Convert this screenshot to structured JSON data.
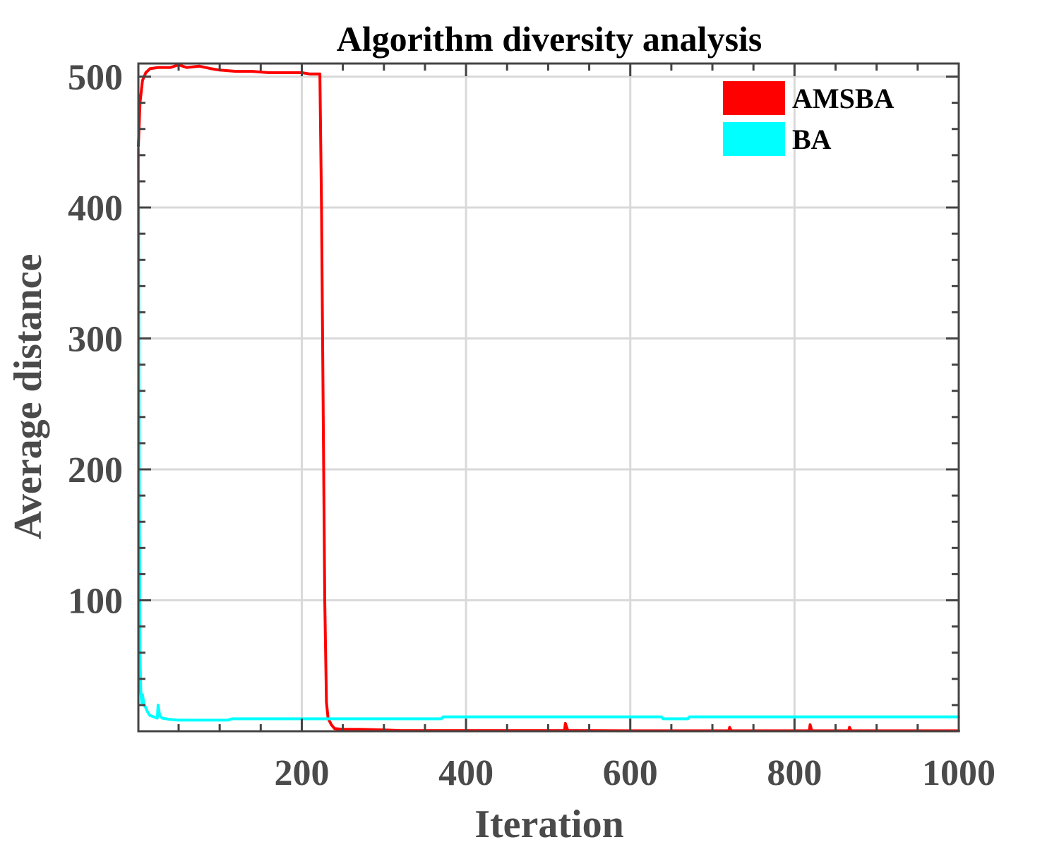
{
  "chart_data": {
    "type": "line",
    "title": "Algorithm diversity analysis",
    "xlabel": "Iteration",
    "ylabel": "Average distance",
    "xlim": [
      1,
      1000
    ],
    "ylim": [
      0,
      510
    ],
    "xticks": [
      200,
      400,
      600,
      800,
      1000
    ],
    "yticks": [
      100,
      200,
      300,
      400,
      500
    ],
    "grid": true,
    "legend_position": "top-right",
    "series": [
      {
        "name": "AMSBA",
        "color": "#ff0000",
        "x": [
          1,
          3,
          6,
          10,
          15,
          25,
          40,
          50,
          60,
          75,
          90,
          100,
          120,
          140,
          160,
          180,
          200,
          210,
          222,
          224,
          226,
          228,
          230,
          232,
          236,
          240,
          250,
          270,
          300,
          320,
          350,
          380,
          400,
          450,
          500,
          520,
          521,
          524,
          550,
          600,
          650,
          700,
          720,
          721,
          723,
          750,
          800,
          818,
          819,
          821,
          850,
          866,
          867,
          869,
          900,
          950,
          1000
        ],
        "values": [
          447,
          480,
          497,
          503,
          506,
          507,
          507,
          509,
          507,
          508,
          506,
          505,
          504,
          504,
          503,
          503,
          503,
          502,
          502,
          400,
          250,
          100,
          22,
          10,
          5,
          2,
          1.5,
          1.5,
          1,
          0.5,
          0.5,
          0.5,
          0.5,
          0.5,
          0.5,
          0.5,
          6,
          0.5,
          0.5,
          0.3,
          0.3,
          0.3,
          0.3,
          3,
          0.3,
          0.3,
          0.3,
          0.3,
          5,
          0.3,
          0.3,
          0.3,
          3,
          0.3,
          0.3,
          0.3,
          0.3
        ]
      },
      {
        "name": "BA",
        "color": "#00ffff",
        "x": [
          1,
          2,
          3,
          4,
          5,
          6,
          8,
          10,
          12,
          15,
          20,
          24,
          25,
          27,
          30,
          40,
          50,
          60,
          70,
          80,
          90,
          100,
          110,
          115,
          200,
          300,
          370,
          372,
          400,
          500,
          600,
          638,
          640,
          670,
          672,
          700,
          800,
          900,
          1000
        ],
        "values": [
          445,
          200,
          60,
          30,
          22,
          28,
          20,
          18,
          15,
          12,
          11,
          10,
          20,
          12,
          10,
          9,
          8.5,
          8.5,
          8.5,
          8.5,
          8.5,
          8.5,
          8.5,
          9.5,
          9.5,
          9.5,
          9.5,
          11,
          11,
          11,
          11,
          11,
          9.5,
          9.5,
          11,
          11,
          11,
          11,
          11
        ]
      }
    ]
  }
}
